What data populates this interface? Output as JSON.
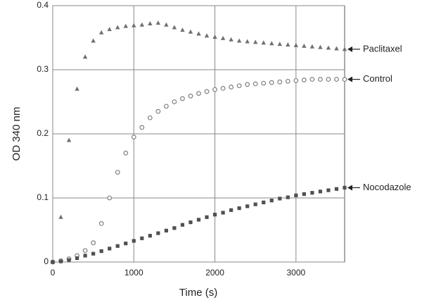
{
  "chart_data": {
    "type": "scatter",
    "xlabel": "Time (s)",
    "ylabel": "OD 340 nm",
    "x": [
      0,
      100,
      200,
      300,
      400,
      500,
      600,
      700,
      800,
      900,
      1000,
      1100,
      1200,
      1300,
      1400,
      1500,
      1600,
      1700,
      1800,
      1900,
      2000,
      2100,
      2200,
      2300,
      2400,
      2500,
      2600,
      2700,
      2800,
      2900,
      3000,
      3100,
      3200,
      3300,
      3400,
      3500,
      3600
    ],
    "series": [
      {
        "name": "Paclitaxel",
        "color": "#707070",
        "marker": "triangle",
        "values": [
          0,
          0.07,
          0.19,
          0.27,
          0.32,
          0.345,
          0.358,
          0.363,
          0.366,
          0.368,
          0.369,
          0.37,
          0.372,
          0.373,
          0.37,
          0.366,
          0.362,
          0.359,
          0.356,
          0.353,
          0.351,
          0.349,
          0.347,
          0.345,
          0.344,
          0.343,
          0.342,
          0.341,
          0.34,
          0.339,
          0.338,
          0.337,
          0.336,
          0.335,
          0.334,
          0.333,
          0.332
        ]
      },
      {
        "name": "Control",
        "color": "#808080",
        "marker": "circle",
        "values": [
          0,
          0.002,
          0.005,
          0.01,
          0.018,
          0.03,
          0.06,
          0.1,
          0.14,
          0.17,
          0.195,
          0.21,
          0.225,
          0.235,
          0.243,
          0.25,
          0.255,
          0.259,
          0.263,
          0.266,
          0.269,
          0.271,
          0.273,
          0.275,
          0.277,
          0.278,
          0.279,
          0.28,
          0.281,
          0.282,
          0.283,
          0.284,
          0.285,
          0.285,
          0.285,
          0.285,
          0.285
        ]
      },
      {
        "name": "Nocodazole",
        "color": "#505050",
        "marker": "square",
        "values": [
          0,
          0.001,
          0.003,
          0.006,
          0.01,
          0.013,
          0.017,
          0.021,
          0.025,
          0.029,
          0.033,
          0.037,
          0.041,
          0.045,
          0.049,
          0.053,
          0.058,
          0.062,
          0.066,
          0.07,
          0.074,
          0.077,
          0.081,
          0.084,
          0.087,
          0.09,
          0.093,
          0.096,
          0.099,
          0.101,
          0.104,
          0.106,
          0.108,
          0.11,
          0.112,
          0.114,
          0.116
        ]
      }
    ],
    "xlim": [
      0,
      3600
    ],
    "xticks": [
      0,
      1000,
      2000,
      3000
    ],
    "ylim": [
      0,
      0.4
    ],
    "yticks": [
      0,
      0.1,
      0.2,
      0.3,
      0.4
    ],
    "grid": true
  }
}
